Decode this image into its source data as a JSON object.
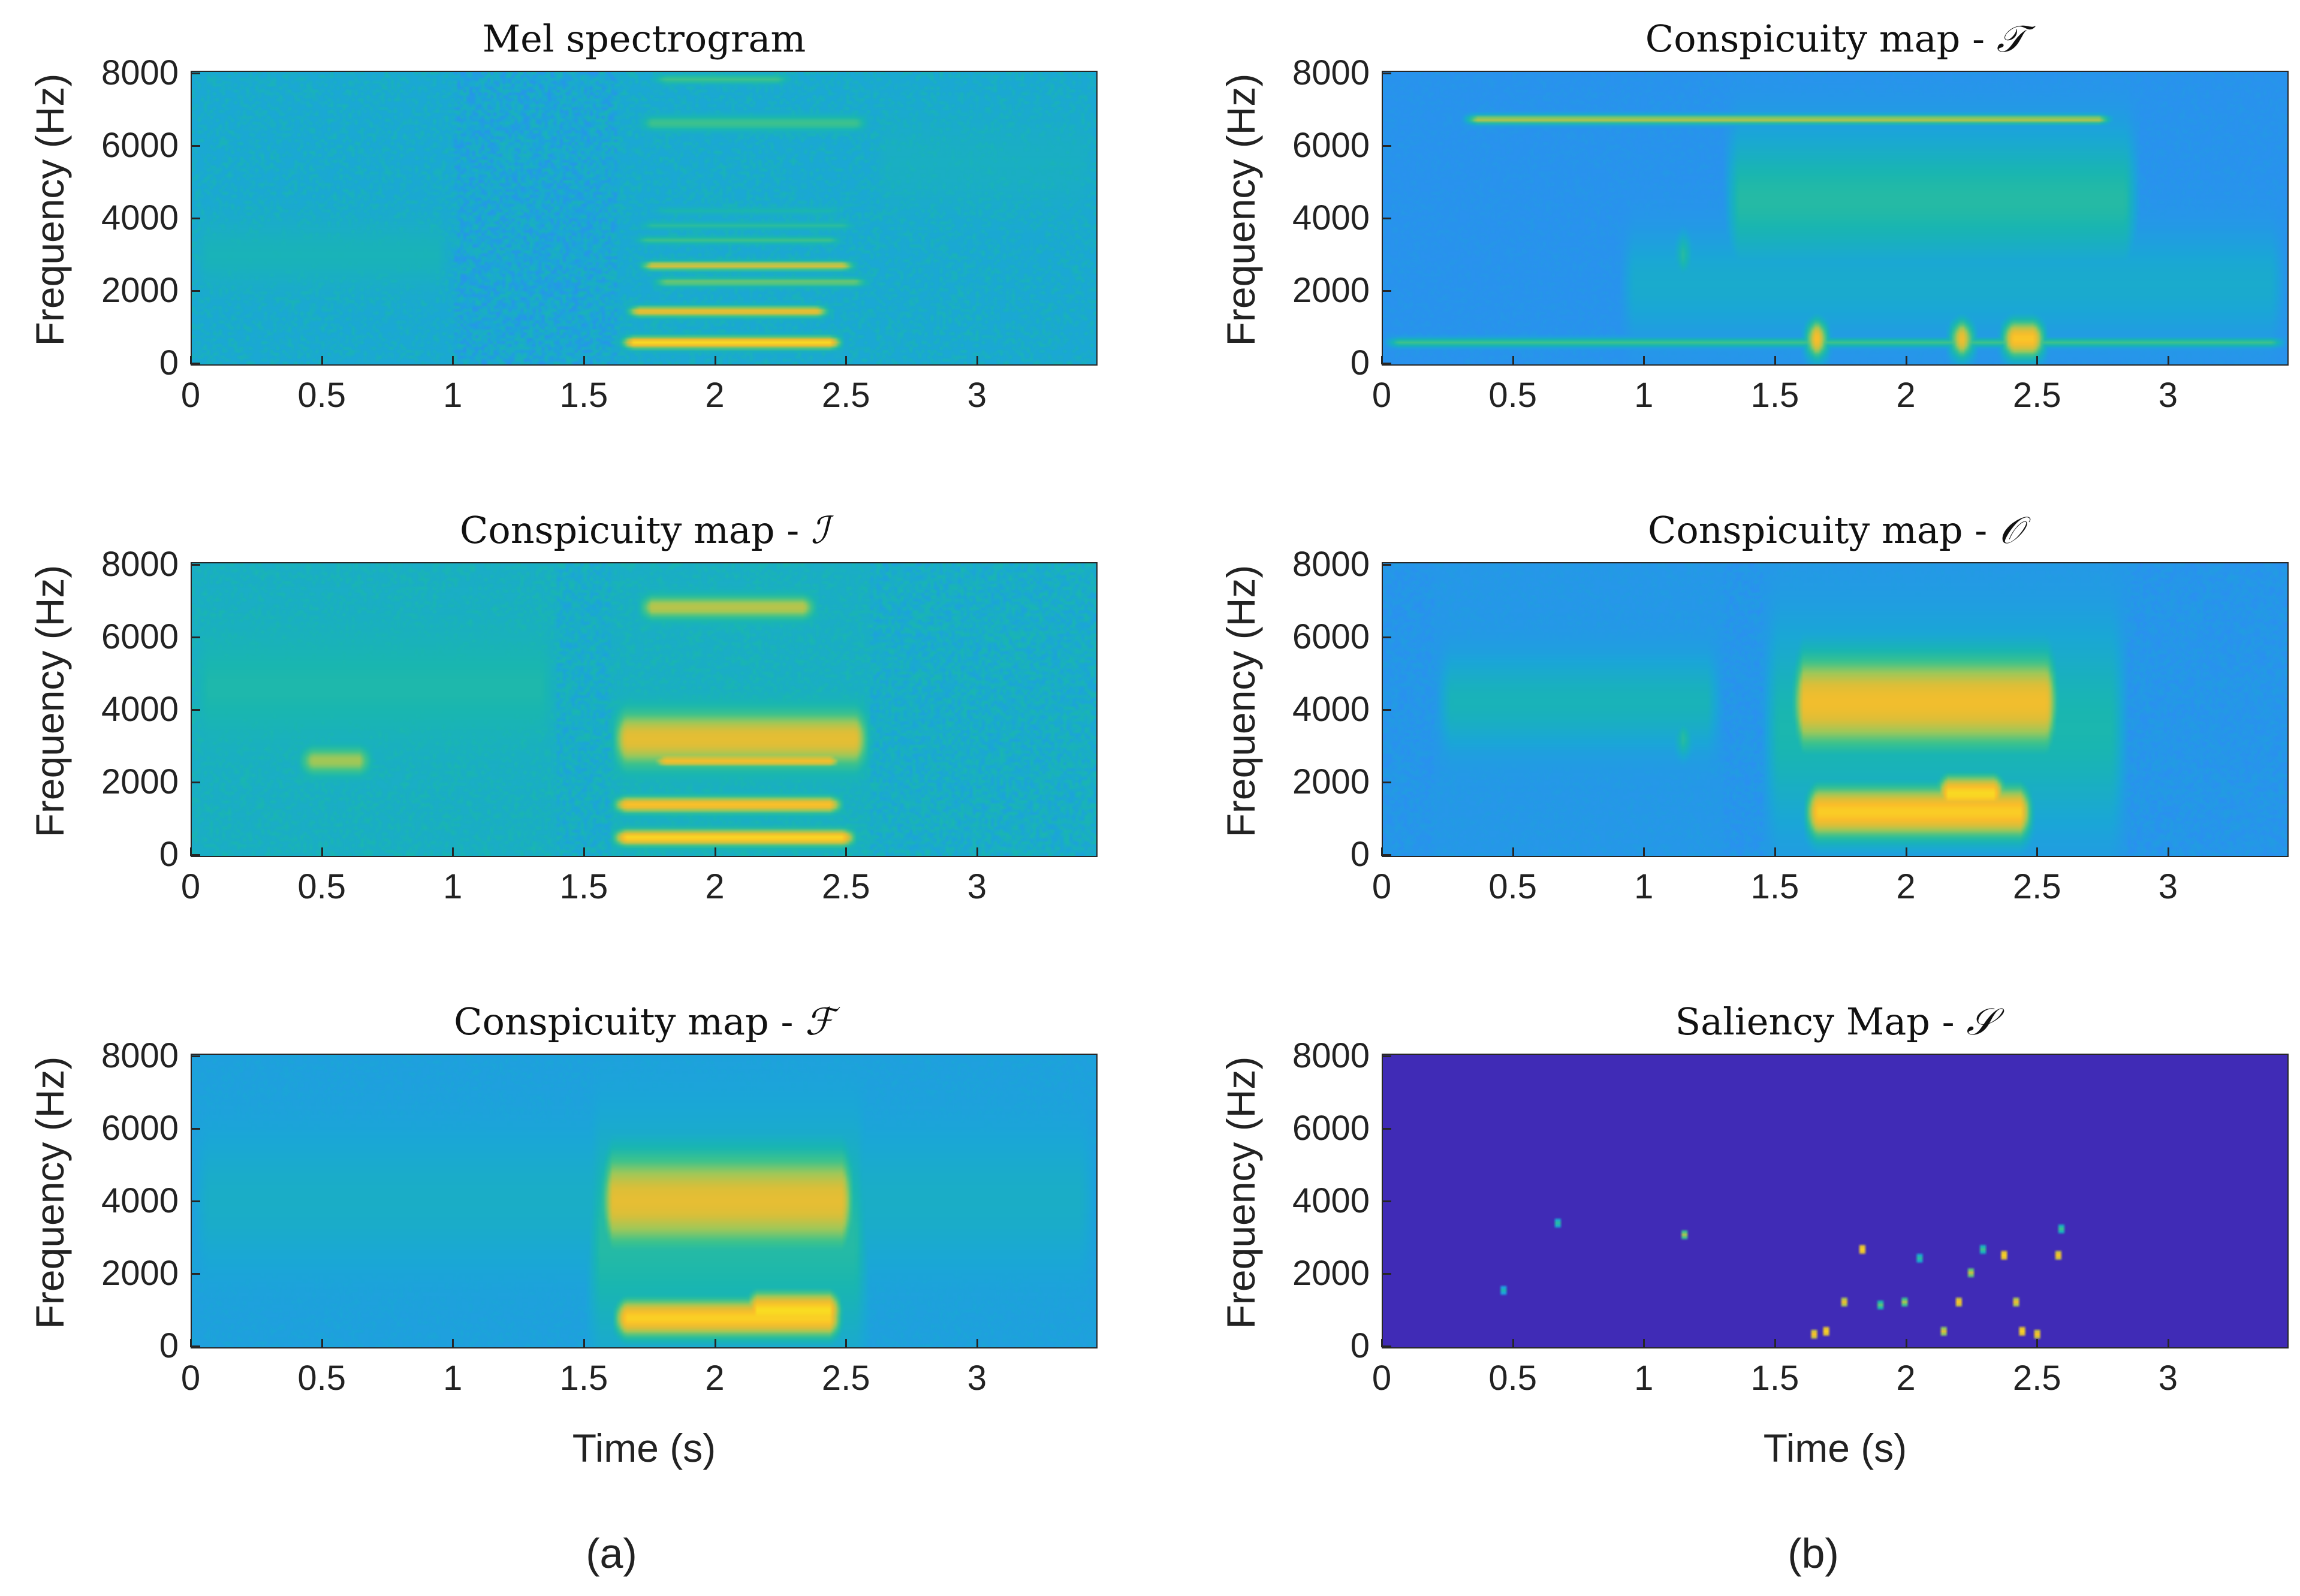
{
  "figure": {
    "caption_a": "(a)",
    "caption_b": "(b)"
  },
  "colors": {
    "colormap": [
      "#3e26a8",
      "#4743f8",
      "#2c8ef3",
      "#1aa7d6",
      "#19b6b1",
      "#3fc38b",
      "#9cc85a",
      "#d9bf3a",
      "#fbbd2a",
      "#f9e021"
    ],
    "axis": "#262626",
    "text": "#222222"
  },
  "chart_data": [
    {
      "id": "mel",
      "type": "heatmap",
      "title": "Mel spectrogram",
      "title_symbol": "",
      "xlabel": "",
      "ylabel": "Frequency (Hz)",
      "xlim": [
        0,
        3.46
      ],
      "ylim": [
        0,
        8000
      ],
      "xticks": [
        "0",
        "0.5",
        "1",
        "1.5",
        "2",
        "2.5",
        "3"
      ],
      "yticks": [
        "0",
        "2000",
        "4000",
        "6000",
        "8000"
      ],
      "background": 0.34,
      "noise": 0.09,
      "blobs": [
        {
          "t0": 1.63,
          "t1": 2.5,
          "f": 600,
          "bw": 160,
          "v": 0.98
        },
        {
          "t0": 1.65,
          "t1": 2.45,
          "f": 1450,
          "bw": 140,
          "v": 0.85
        },
        {
          "t0": 1.75,
          "t1": 2.6,
          "f": 2250,
          "bw": 120,
          "v": 0.62
        },
        {
          "t0": 1.7,
          "t1": 2.55,
          "f": 2700,
          "bw": 120,
          "v": 0.78
        },
        {
          "t0": 1.68,
          "t1": 2.5,
          "f": 3400,
          "bw": 100,
          "v": 0.55
        },
        {
          "t0": 1.7,
          "t1": 2.55,
          "f": 3800,
          "bw": 100,
          "v": 0.5
        },
        {
          "t0": 1.75,
          "t1": 2.5,
          "f": 4200,
          "bw": 90,
          "v": 0.45
        },
        {
          "t0": 1.7,
          "t1": 2.6,
          "f": 6600,
          "bw": 200,
          "v": 0.55
        },
        {
          "t0": 1.75,
          "t1": 2.3,
          "f": 7800,
          "bw": 120,
          "v": 0.55
        },
        {
          "t0": 0.0,
          "t1": 1.0,
          "f": 3000,
          "bw": 900,
          "v": 0.42
        },
        {
          "t0": 2.6,
          "t1": 3.46,
          "f": 5500,
          "bw": 1200,
          "v": 0.39
        }
      ]
    },
    {
      "id": "cm_T",
      "type": "heatmap",
      "title": "Conspicuity map - ",
      "title_symbol": "𝒯",
      "xlabel": "",
      "ylabel": "Frequency (Hz)",
      "xlim": [
        0,
        3.46
      ],
      "ylim": [
        0,
        8000
      ],
      "xticks": [
        "0",
        "0.5",
        "1",
        "1.5",
        "2",
        "2.5",
        "3"
      ],
      "yticks": [
        "0",
        "2000",
        "4000",
        "6000",
        "8000"
      ],
      "background": 0.24,
      "noise": 0.03,
      "blobs": [
        {
          "t0": 1.3,
          "t1": 2.9,
          "f": 4500,
          "bw": 1800,
          "v": 0.48
        },
        {
          "t0": 0.0,
          "t1": 3.46,
          "f": 600,
          "bw": 120,
          "v": 0.55
        },
        {
          "t0": 0.3,
          "t1": 2.8,
          "f": 6700,
          "bw": 120,
          "v": 0.72
        },
        {
          "t0": 1.6,
          "t1": 1.72,
          "f": 700,
          "bw": 500,
          "v": 0.95
        },
        {
          "t0": 2.15,
          "t1": 2.28,
          "f": 700,
          "bw": 500,
          "v": 0.85
        },
        {
          "t0": 2.35,
          "t1": 2.55,
          "f": 700,
          "bw": 500,
          "v": 0.92
        },
        {
          "t0": 1.1,
          "t1": 1.2,
          "f": 3000,
          "bw": 600,
          "v": 0.55
        },
        {
          "t0": 0.9,
          "t1": 3.46,
          "f": 2200,
          "bw": 1400,
          "v": 0.36
        }
      ]
    },
    {
      "id": "cm_I",
      "type": "heatmap",
      "title": "Conspicuity map - ",
      "title_symbol": "ℐ",
      "xlabel": "",
      "ylabel": "Frequency (Hz)",
      "xlim": [
        0,
        3.46
      ],
      "ylim": [
        0,
        8000
      ],
      "xticks": [
        "0",
        "0.5",
        "1",
        "1.5",
        "2",
        "2.5",
        "3"
      ],
      "yticks": [
        "0",
        "2000",
        "4000",
        "6000",
        "8000"
      ],
      "background": 0.38,
      "noise": 0.07,
      "blobs": [
        {
          "t0": 1.6,
          "t1": 2.55,
          "f": 500,
          "bw": 200,
          "v": 0.98
        },
        {
          "t0": 1.6,
          "t1": 2.5,
          "f": 1400,
          "bw": 200,
          "v": 0.9
        },
        {
          "t0": 1.6,
          "t1": 2.6,
          "f": 3200,
          "bw": 700,
          "v": 0.82
        },
        {
          "t0": 1.75,
          "t1": 2.5,
          "f": 2600,
          "bw": 150,
          "v": 0.88
        },
        {
          "t0": 1.7,
          "t1": 2.4,
          "f": 6800,
          "bw": 300,
          "v": 0.72
        },
        {
          "t0": 0.4,
          "t1": 0.7,
          "f": 2600,
          "bw": 350,
          "v": 0.68
        },
        {
          "t0": 0.0,
          "t1": 1.4,
          "f": 4600,
          "bw": 1400,
          "v": 0.46
        }
      ]
    },
    {
      "id": "cm_O",
      "type": "heatmap",
      "title": "Conspicuity map - ",
      "title_symbol": "𝒪",
      "xlabel": "",
      "ylabel": "Frequency (Hz)",
      "xlim": [
        0,
        3.46
      ],
      "ylim": [
        0,
        8000
      ],
      "xticks": [
        "0",
        "0.5",
        "1",
        "1.5",
        "2",
        "2.5",
        "3"
      ],
      "yticks": [
        "0",
        "2000",
        "4000",
        "6000",
        "8000"
      ],
      "background": 0.26,
      "noise": 0.03,
      "blobs": [
        {
          "t0": 1.55,
          "t1": 2.6,
          "f": 4200,
          "bw": 1300,
          "v": 0.86
        },
        {
          "t0": 1.6,
          "t1": 2.5,
          "f": 1200,
          "bw": 700,
          "v": 0.94
        },
        {
          "t0": 2.1,
          "t1": 2.4,
          "f": 1700,
          "bw": 500,
          "v": 0.98
        },
        {
          "t0": 0.2,
          "t1": 1.3,
          "f": 4200,
          "bw": 1200,
          "v": 0.42
        },
        {
          "t0": 1.1,
          "t1": 1.2,
          "f": 3200,
          "bw": 500,
          "v": 0.55
        },
        {
          "t0": 1.45,
          "t1": 2.85,
          "f": 3500,
          "bw": 2600,
          "v": 0.45
        }
      ]
    },
    {
      "id": "cm_F",
      "type": "heatmap",
      "title": "Conspicuity map - ",
      "title_symbol": "ℱ",
      "xlabel": "Time (s)",
      "ylabel": "Frequency (Hz)",
      "xlim": [
        0,
        3.46
      ],
      "ylim": [
        0,
        8000
      ],
      "xticks": [
        "0",
        "0.5",
        "1",
        "1.5",
        "2",
        "2.5",
        "3"
      ],
      "yticks": [
        "0",
        "2000",
        "4000",
        "6000",
        "8000"
      ],
      "background": 0.3,
      "noise": 0.03,
      "blobs": [
        {
          "t0": 1.55,
          "t1": 2.55,
          "f": 4000,
          "bw": 1300,
          "v": 0.82
        },
        {
          "t0": 1.6,
          "t1": 2.5,
          "f": 800,
          "bw": 500,
          "v": 0.95
        },
        {
          "t0": 2.1,
          "t1": 2.5,
          "f": 1000,
          "bw": 500,
          "v": 0.99
        },
        {
          "t0": 0.0,
          "t1": 3.46,
          "f": 4000,
          "bw": 1800,
          "v": 0.38
        },
        {
          "t0": 1.5,
          "t1": 2.6,
          "f": 3000,
          "bw": 2800,
          "v": 0.48
        }
      ]
    },
    {
      "id": "saliency",
      "type": "heatmap",
      "title": "Saliency Map - ",
      "title_symbol": "𝒮",
      "xlabel": "Time (s)",
      "ylabel": "Frequency (Hz)",
      "xlim": [
        0,
        3.46
      ],
      "ylim": [
        0,
        8000
      ],
      "xticks": [
        "0",
        "0.5",
        "1",
        "1.5",
        "2",
        "2.5",
        "3"
      ],
      "yticks": [
        "0",
        "2000",
        "4000",
        "6000",
        "8000"
      ],
      "background": 0.02,
      "noise": 0,
      "cells": [
        {
          "t": 0.46,
          "f": 1600,
          "v": 0.45
        },
        {
          "t": 0.67,
          "f": 3400,
          "v": 0.5
        },
        {
          "t": 1.15,
          "f": 3100,
          "v": 0.7
        },
        {
          "t": 1.65,
          "f": 400,
          "v": 0.9
        },
        {
          "t": 1.7,
          "f": 500,
          "v": 0.95
        },
        {
          "t": 1.76,
          "f": 1300,
          "v": 0.85
        },
        {
          "t": 1.83,
          "f": 2700,
          "v": 0.95
        },
        {
          "t": 1.9,
          "f": 1200,
          "v": 0.6
        },
        {
          "t": 2.0,
          "f": 1300,
          "v": 0.7
        },
        {
          "t": 2.05,
          "f": 2500,
          "v": 0.5
        },
        {
          "t": 2.15,
          "f": 500,
          "v": 0.8
        },
        {
          "t": 2.2,
          "f": 1300,
          "v": 0.9
        },
        {
          "t": 2.25,
          "f": 2100,
          "v": 0.75
        },
        {
          "t": 2.3,
          "f": 2700,
          "v": 0.55
        },
        {
          "t": 2.38,
          "f": 2600,
          "v": 0.95
        },
        {
          "t": 2.42,
          "f": 1300,
          "v": 0.85
        },
        {
          "t": 2.45,
          "f": 500,
          "v": 0.95
        },
        {
          "t": 2.5,
          "f": 400,
          "v": 0.9
        },
        {
          "t": 2.58,
          "f": 2600,
          "v": 0.9
        },
        {
          "t": 2.6,
          "f": 3300,
          "v": 0.55
        }
      ]
    }
  ]
}
